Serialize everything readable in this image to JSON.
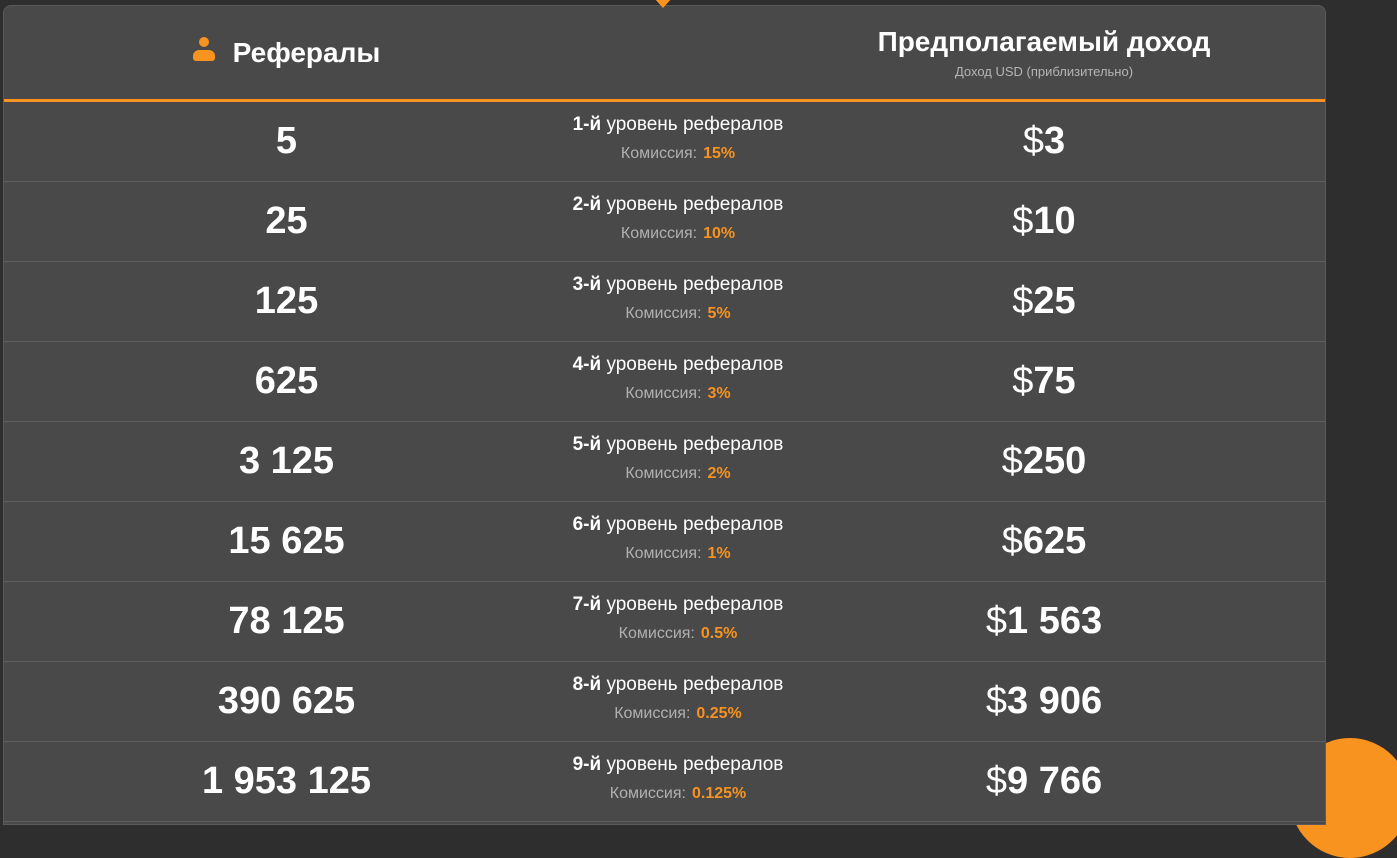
{
  "header": {
    "referrals_title": "Рефералы",
    "income_title": "Предполагаемый доход",
    "income_subtitle": "Доход USD (приблизительно)"
  },
  "colors": {
    "accent": "#f7931e",
    "card_bg": "#494949",
    "page_bg": "#2e2e2e"
  },
  "icons": {
    "referrals": "user-icon"
  },
  "commission_label": "Комиссия:",
  "currency_symbol": "$",
  "rows": [
    {
      "referrals": "5",
      "level_num": "1-й",
      "level_text": "уровень рефералов",
      "commission": "15%",
      "income": "3"
    },
    {
      "referrals": "25",
      "level_num": "2-й",
      "level_text": "уровень рефералов",
      "commission": "10%",
      "income": "10"
    },
    {
      "referrals": "125",
      "level_num": "3-й",
      "level_text": "уровень рефералов",
      "commission": "5%",
      "income": "25"
    },
    {
      "referrals": "625",
      "level_num": "4-й",
      "level_text": "уровень рефералов",
      "commission": "3%",
      "income": "75"
    },
    {
      "referrals": "3 125",
      "level_num": "5-й",
      "level_text": "уровень рефералов",
      "commission": "2%",
      "income": "250"
    },
    {
      "referrals": "15 625",
      "level_num": "6-й",
      "level_text": "уровень рефералов",
      "commission": "1%",
      "income": "625"
    },
    {
      "referrals": "78 125",
      "level_num": "7-й",
      "level_text": "уровень рефералов",
      "commission": "0.5%",
      "income": "1 563"
    },
    {
      "referrals": "390 625",
      "level_num": "8-й",
      "level_text": "уровень рефералов",
      "commission": "0.25%",
      "income": "3 906"
    },
    {
      "referrals": "1 953 125",
      "level_num": "9-й",
      "level_text": "уровень рефералов",
      "commission": "0.125%",
      "income": "9 766"
    }
  ]
}
